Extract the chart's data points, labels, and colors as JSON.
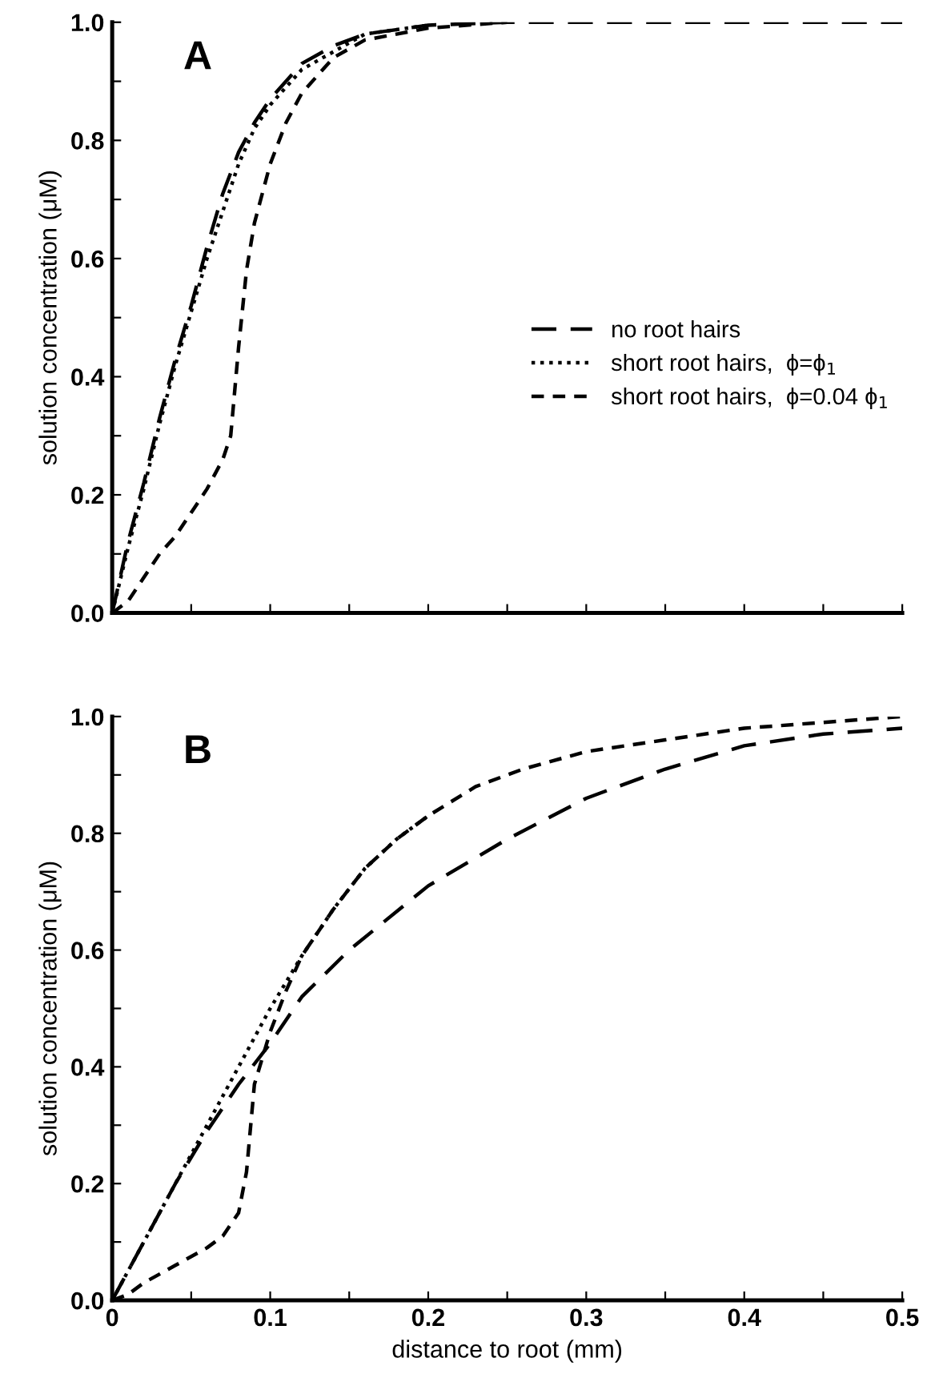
{
  "chart_data": [
    {
      "type": "line",
      "title": "A",
      "ylabel": "solution concentration (μM)",
      "xlim": [
        0,
        0.5
      ],
      "ylim": [
        0,
        1.0
      ],
      "xticks": [
        {
          "value": 0,
          "label": null
        },
        {
          "value": 0.05,
          "label": null
        },
        {
          "value": 0.1,
          "label": null
        },
        {
          "value": 0.15,
          "label": null
        },
        {
          "value": 0.2,
          "label": null
        },
        {
          "value": 0.25,
          "label": null
        },
        {
          "value": 0.3,
          "label": null
        },
        {
          "value": 0.35,
          "label": null
        },
        {
          "value": 0.4,
          "label": null
        },
        {
          "value": 0.45,
          "label": null
        },
        {
          "value": 0.5,
          "label": null
        }
      ],
      "yticks": [
        {
          "value": 0,
          "label": "0.0"
        },
        {
          "value": 0.1,
          "label": null
        },
        {
          "value": 0.2,
          "label": "0.2"
        },
        {
          "value": 0.3,
          "label": null
        },
        {
          "value": 0.4,
          "label": "0.4"
        },
        {
          "value": 0.5,
          "label": null
        },
        {
          "value": 0.6,
          "label": "0.6"
        },
        {
          "value": 0.7,
          "label": null
        },
        {
          "value": 0.8,
          "label": "0.8"
        },
        {
          "value": 0.9,
          "label": null
        },
        {
          "value": 1.0,
          "label": "1.0"
        }
      ],
      "tick_labels": "y",
      "grid": false,
      "legend": "right",
      "series": [
        {
          "name": "no root hairs",
          "color": "#000000",
          "line_style": "dashed",
          "x": [
            0,
            0.01,
            0.02,
            0.03,
            0.04,
            0.05,
            0.06,
            0.07,
            0.08,
            0.09,
            0.1,
            0.12,
            0.14,
            0.16,
            0.2,
            0.25,
            0.5
          ],
          "values": [
            0,
            0.12,
            0.22,
            0.33,
            0.43,
            0.52,
            0.62,
            0.71,
            0.78,
            0.83,
            0.87,
            0.93,
            0.96,
            0.98,
            0.995,
            1.0,
            1.0
          ]
        },
        {
          "name": "short root hairs,  ϕ=ϕ$_{1}$",
          "color": "#000000",
          "line_style": "dotted",
          "x": [
            0,
            0.01,
            0.02,
            0.03,
            0.04,
            0.05,
            0.06,
            0.07,
            0.08,
            0.09,
            0.1,
            0.12,
            0.14,
            0.16,
            0.2
          ],
          "values": [
            0,
            0.11,
            0.21,
            0.32,
            0.42,
            0.51,
            0.6,
            0.68,
            0.76,
            0.82,
            0.86,
            0.92,
            0.95,
            0.98,
            0.995
          ]
        },
        {
          "name": "short root hairs,  ϕ=0.04 ϕ$_{1}$",
          "color": "#000000",
          "line_style": "dashed",
          "x": [
            0,
            0.01,
            0.02,
            0.03,
            0.04,
            0.05,
            0.06,
            0.07,
            0.075,
            0.08,
            0.085,
            0.09,
            0.1,
            0.11,
            0.12,
            0.14,
            0.16,
            0.2,
            0.25
          ],
          "values": [
            0,
            0.02,
            0.06,
            0.1,
            0.13,
            0.17,
            0.21,
            0.26,
            0.3,
            0.45,
            0.58,
            0.66,
            0.76,
            0.83,
            0.88,
            0.94,
            0.97,
            0.99,
            1.0
          ]
        }
      ]
    },
    {
      "type": "line",
      "title": "B",
      "xlabel": "distance to root (mm)",
      "ylabel": "solution concentration (μM)",
      "xlim": [
        0,
        0.5
      ],
      "ylim": [
        0,
        1.0
      ],
      "xticks": [
        0,
        {
          "value": 0.05,
          "label": null
        },
        0.1,
        {
          "value": 0.15,
          "label": null
        },
        0.2,
        {
          "value": 0.25,
          "label": null
        },
        0.3,
        {
          "value": 0.35,
          "label": null
        },
        0.4,
        {
          "value": 0.45,
          "label": null
        },
        0.5
      ],
      "yticks": [
        {
          "value": 0,
          "label": "0.0"
        },
        {
          "value": 0.1,
          "label": null
        },
        {
          "value": 0.2,
          "label": "0.2"
        },
        {
          "value": 0.3,
          "label": null
        },
        {
          "value": 0.4,
          "label": "0.4"
        },
        {
          "value": 0.5,
          "label": null
        },
        {
          "value": 0.6,
          "label": "0.6"
        },
        {
          "value": 0.7,
          "label": null
        },
        {
          "value": 0.8,
          "label": "0.8"
        },
        {
          "value": 0.9,
          "label": null
        },
        {
          "value": 1.0,
          "label": "1.0"
        }
      ],
      "grid": false,
      "series": [
        {
          "color": "#000000",
          "line_style": "dashed",
          "x": [
            0,
            0.01,
            0.02,
            0.04,
            0.06,
            0.08,
            0.1,
            0.12,
            0.15,
            0.2,
            0.25,
            0.3,
            0.35,
            0.4,
            0.45,
            0.5
          ],
          "values": [
            0,
            0.05,
            0.1,
            0.2,
            0.29,
            0.37,
            0.44,
            0.52,
            0.6,
            0.71,
            0.79,
            0.86,
            0.91,
            0.95,
            0.97,
            0.98
          ]
        },
        {
          "color": "#000000",
          "line_style": "dotted",
          "x": [
            0,
            0.02,
            0.04,
            0.06,
            0.08,
            0.1,
            0.12,
            0.14,
            0.16,
            0.18,
            0.2
          ],
          "values": [
            0,
            0.1,
            0.2,
            0.3,
            0.4,
            0.5,
            0.59,
            0.67,
            0.74,
            0.79,
            0.83
          ]
        },
        {
          "color": "#000000",
          "line_style": "dashed",
          "x": [
            0,
            0.01,
            0.02,
            0.04,
            0.06,
            0.07,
            0.08,
            0.085,
            0.09,
            0.1,
            0.11,
            0.12,
            0.14,
            0.16,
            0.18,
            0.2,
            0.23,
            0.26,
            0.3,
            0.35,
            0.4,
            0.45,
            0.5
          ],
          "values": [
            0,
            0.01,
            0.03,
            0.06,
            0.09,
            0.11,
            0.15,
            0.22,
            0.37,
            0.46,
            0.53,
            0.59,
            0.67,
            0.74,
            0.79,
            0.83,
            0.88,
            0.91,
            0.94,
            0.96,
            0.98,
            0.99,
            1.0
          ]
        }
      ]
    }
  ]
}
